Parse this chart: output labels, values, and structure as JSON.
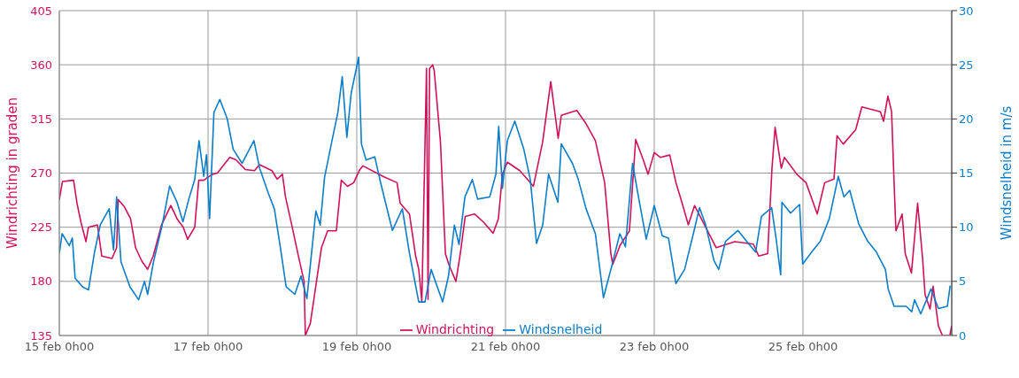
{
  "chart_data": {
    "type": "line",
    "ylabel": "Windrichting in graden",
    "y2label": "Windsnelheid in m/s",
    "xlim": [
      "--02-15T00:00",
      "--02-27T00:00"
    ],
    "xticks": [
      {
        "value": "--02-15T00:00",
        "label": "15 feb 0h00"
      },
      {
        "value": "--02-17T00:00",
        "label": "17 feb 0h00"
      },
      {
        "value": "--02-19T00:00",
        "label": "19 feb 0h00"
      },
      {
        "value": "--02-21T00:00",
        "label": "21 feb 0h00"
      },
      {
        "value": "--02-23T00:00",
        "label": "23 feb 0h00"
      },
      {
        "value": "--02-25T00:00",
        "label": "25 feb 0h00"
      },
      {
        "value": "--02-27T00:00",
        "label": null
      }
    ],
    "ylim": [
      135,
      405
    ],
    "yticks": [
      135,
      180,
      225,
      270,
      315,
      360,
      405
    ],
    "y2lim": [
      0,
      30
    ],
    "y2ticks": [
      0,
      5,
      10,
      15,
      20,
      25,
      30
    ],
    "grid": true,
    "legend": "bottom",
    "marker": "none",
    "series": [
      {
        "name": "Windrichting",
        "color": "#d0105a",
        "axis": "y",
        "x": [
          "--02-15T00:00",
          "--02-15T01:00",
          "--02-15T04:36",
          "--02-15T05:42",
          "--02-15T07:00",
          "--02-15T08:36",
          "--02-15T09:24",
          "--02-15T12:18",
          "--02-15T13:42",
          "--02-15T17:00",
          "--02-15T18:30",
          "--02-15T19:00",
          "--02-15T21:00",
          "--02-15T23:00",
          "--02-16T00:36",
          "--02-16T02:36",
          "--02-16T04:30",
          "--02-16T06:18",
          "--02-16T09:00",
          "--02-16T12:00",
          "--02-16T14:00",
          "--02-16T16:00",
          "--02-16T17:24",
          "--02-16T19:42",
          "--02-16T21:00",
          "--02-16T22:36",
          "--02-17T01:24",
          "--02-17T03:00",
          "--02-17T07:00",
          "--02-17T09:00",
          "--02-17T12:00",
          "--02-17T15:00",
          "--02-17T16:36",
          "--02-17T20:36",
          "--02-17T22:18",
          "--02-18T00:00",
          "--02-18T01:00",
          "--02-18T03:00",
          "--02-18T05:00",
          "--02-18T07:00",
          "--02-18T07:24",
          "--02-18T09:00",
          "--02-18T11:00",
          "--02-18T12:36",
          "--02-18T14:36",
          "--02-18T17:24",
          "--02-18T19:00",
          "--02-18T21:00",
          "--02-18T23:00",
          "--02-19T01:00",
          "--02-19T02:00",
          "--02-19T08:36",
          "--02-19T13:00",
          "--02-19T14:00",
          "--02-19T17:00",
          "--02-19T19:00",
          "--02-19T20:00",
          "--02-19T21:00",
          "--02-19T22:30",
          "--02-19T23:00",
          "--02-19T23:30",
          "--02-20T00:30",
          "--02-20T01:00",
          "--02-20T03:00",
          "--02-20T04:36",
          "--02-20T05:42",
          "--02-20T08:00",
          "--02-20T09:24",
          "--02-20T11:00",
          "--02-20T14:00",
          "--02-20T17:00",
          "--02-20T20:00",
          "--02-20T21:42",
          "--02-20T23:00",
          "--02-21T00:36",
          "--02-21T04:36",
          "--02-21T07:00",
          "--02-21T09:00",
          "--02-21T12:00",
          "--02-21T14:36",
          "--02-21T17:00",
          "--02-21T18:00",
          "--02-21T23:00",
          "--02-22T02:00",
          "--02-22T05:00",
          "--02-22T08:00",
          "--02-22T10:00",
          "--02-22T10:36",
          "--02-22T13:00",
          "--02-22T16:00",
          "--02-22T18:00",
          "--02-22T20:36",
          "--02-22T22:00",
          "--02-23T00:00",
          "--02-23T02:00",
          "--02-23T05:00",
          "--02-23T07:00",
          "--02-23T09:00",
          "--02-23T11:00",
          "--02-23T13:00",
          "--02-23T16:36",
          "--02-23T20:00",
          "--02-24T02:00",
          "--02-24T08:00",
          "--02-24T09:42",
          "--02-24T12:36",
          "--02-24T14:00",
          "--02-24T15:00",
          "--02-24T17:00",
          "--02-24T18:00",
          "--02-24T22:00",
          "--02-25T01:00",
          "--02-25T04:36",
          "--02-25T07:00",
          "--02-25T10:00",
          "--02-25T11:00",
          "--02-25T13:00",
          "--02-25T17:00",
          "--02-25T19:00",
          "--02-25T22:00",
          "--02-26T01:00",
          "--02-26T02:00",
          "--02-26T03:24",
          "--02-26T04:36",
          "--02-26T05:24",
          "--02-26T06:00",
          "--02-26T08:00",
          "--02-26T09:00",
          "--02-26T11:00",
          "--02-26T13:00",
          "--02-26T14:36",
          "--02-26T15:24",
          "--02-26T17:00",
          "--02-26T18:00",
          "--02-26T19:42",
          "--02-26T21:00",
          "--02-26T23:24",
          "--02-27T00:00"
        ],
        "values": [
          248,
          263,
          264,
          245,
          229,
          213,
          225,
          227,
          201,
          199,
          208,
          248,
          242,
          232,
          208,
          197,
          190,
          201,
          227,
          243,
          232,
          225,
          215,
          225,
          264,
          264,
          269,
          270,
          283,
          281,
          273,
          272,
          277,
          272,
          265,
          269,
          250,
          227,
          203,
          180,
          135,
          145,
          180,
          208,
          222,
          222,
          264,
          259,
          262,
          273,
          276,
          267,
          262,
          245,
          236,
          201,
          190,
          163,
          357,
          165,
          357,
          360,
          355,
          296,
          203,
          194,
          180,
          203,
          234,
          236,
          229,
          220,
          232,
          269,
          279,
          272,
          265,
          259,
          296,
          346,
          299,
          318,
          322,
          311,
          297,
          262,
          203,
          194,
          210,
          222,
          298,
          280,
          269,
          287,
          283,
          285,
          262,
          245,
          227,
          243,
          225,
          208,
          213,
          211,
          201,
          203,
          274,
          308,
          274,
          283,
          269,
          262,
          236,
          262,
          265,
          301,
          294,
          306,
          325,
          323,
          321,
          313,
          334,
          321,
          262,
          222,
          236,
          203,
          187,
          245,
          199,
          169,
          157,
          176,
          143,
          135,
          135,
          143
        ]
      },
      {
        "name": "Windsnelheid",
        "color": "#0a7dc8",
        "axis": "y2",
        "x": [
          "--02-15T00:00",
          "--02-15T00:54",
          "--02-15T03:12",
          "--02-15T04:12",
          "--02-15T05:06",
          "--02-15T07:30",
          "--02-15T09:24",
          "--02-15T11:18",
          "--02-15T13:12",
          "--02-15T16:06",
          "--02-15T17:30",
          "--02-15T18:30",
          "--02-15T19:54",
          "--02-15T22:48",
          "--02-16T01:36",
          "--02-16T03:30",
          "--02-16T04:30",
          "--02-16T06:24",
          "--02-16T09:12",
          "--02-16T11:36",
          "--02-16T14:00",
          "--02-16T15:54",
          "--02-16T17:48",
          "--02-16T19:42",
          "--02-16T21:06",
          "--02-16T22:36",
          "--02-16T23:30",
          "--02-17T00:30",
          "--02-17T01:54",
          "--02-17T03:48",
          "--02-17T06:12",
          "--02-17T08:06",
          "--02-17T11:00",
          "--02-17T14:48",
          "--02-17T16:42",
          "--02-17T19:30",
          "--02-17T21:24",
          "--02-17T23:18",
          "--02-18T01:12",
          "--02-18T04:00",
          "--02-18T06:00",
          "--02-18T07:54",
          "--02-18T10:48",
          "--02-18T12:12",
          "--02-18T13:36",
          "--02-18T16:00",
          "--02-18T17:54",
          "--02-18T19:18",
          "--02-18T20:48",
          "--02-18T22:12",
          "--02-19T00:36",
          "--02-19T01:30",
          "--02-19T03:00",
          "--02-19T05:48",
          "--02-19T07:42",
          "--02-19T11:30",
          "--02-19T14:42",
          "--02-19T17:00",
          "--02-19T20:00",
          "--02-19T22:00",
          "--02-20T00:00",
          "--02-20T03:42",
          "--02-20T05:36",
          "--02-20T07:30",
          "--02-20T09:00",
          "--02-20T10:54",
          "--02-20T13:18",
          "--02-20T15:00",
          "--02-20T18:54",
          "--02-20T20:54",
          "--02-20T21:48",
          "--02-20T23:00",
          "--02-21T00:36",
          "--02-21T03:00",
          "--02-21T05:54",
          "--02-21T08:00",
          "--02-21T10:00",
          "--02-21T12:00",
          "--02-21T13:54",
          "--02-21T16:54",
          "--02-21T18:00",
          "--02-21T21:36",
          "--02-21T23:30",
          "--02-22T02:00",
          "--02-22T05:00",
          "--02-22T07:36",
          "--02-22T10:00",
          "--02-22T12:54",
          "--02-22T14:42",
          "--02-22T17:00",
          "--02-22T18:36",
          "--02-22T21:24",
          "--02-23T00:00",
          "--02-23T02:36",
          "--02-23T04:36",
          "--02-23T07:00",
          "--02-23T09:48",
          "--02-23T12:42",
          "--02-23T14:36",
          "--02-23T16:30",
          "--02-23T19:18",
          "--02-23T20:48",
          "--02-23T23:00",
          "--02-24T03:00",
          "--02-24T05:48",
          "--02-24T08:42",
          "--02-24T10:36",
          "--02-24T13:54",
          "--02-24T15:18",
          "--02-24T16:48",
          "--02-24T17:12",
          "--02-24T20:00",
          "--02-24T22:54",
          "--02-24T23:54",
          "--02-25T02:48",
          "--02-25T05:36",
          "--02-25T08:30",
          "--02-25T11:24",
          "--02-25T13:12",
          "--02-25T15:06",
          "--02-25T18:00",
          "--02-25T20:54",
          "--02-25T23:42",
          "--02-26T02:36",
          "--02-26T03:30",
          "--02-26T05:24",
          "--02-26T09:18",
          "--02-26T11:06",
          "--02-26T12:00",
          "--02-26T14:00",
          "--02-26T15:54",
          "--02-26T17:18",
          "--02-26T19:42",
          "--02-26T22:36",
          "--02-26T23:30"
        ],
        "values": [
          7.6,
          9.4,
          8.3,
          9.0,
          5.3,
          4.5,
          4.2,
          7.6,
          10.2,
          11.7,
          7.9,
          12.8,
          6.8,
          4.5,
          3.3,
          5.0,
          3.8,
          6.8,
          10.2,
          13.8,
          12.3,
          10.5,
          12.6,
          14.4,
          18.0,
          14.7,
          16.7,
          10.8,
          20.6,
          21.8,
          20.0,
          17.2,
          15.9,
          18.0,
          15.4,
          13.1,
          11.7,
          8.2,
          4.5,
          3.8,
          5.5,
          3.4,
          11.5,
          10.2,
          14.6,
          18.0,
          20.6,
          23.9,
          18.3,
          22.4,
          25.7,
          17.7,
          16.2,
          16.5,
          14.1,
          9.7,
          11.7,
          7.6,
          3.1,
          3.1,
          6.1,
          3.1,
          5.5,
          10.2,
          8.4,
          12.8,
          14.4,
          12.6,
          12.8,
          14.9,
          19.3,
          13.6,
          18.0,
          19.8,
          17.2,
          14.4,
          8.5,
          10.2,
          14.9,
          12.3,
          17.7,
          15.9,
          14.4,
          11.7,
          9.4,
          3.5,
          6.1,
          9.4,
          8.2,
          15.9,
          13.3,
          8.9,
          12.0,
          9.2,
          9.0,
          4.8,
          6.1,
          9.5,
          11.8,
          10.3,
          6.9,
          6.1,
          8.7,
          9.7,
          8.7,
          7.7,
          11.0,
          11.8,
          9.0,
          5.6,
          12.3,
          11.3,
          12.1,
          6.6,
          7.7,
          8.7,
          10.8,
          14.7,
          12.8,
          13.4,
          10.3,
          8.7,
          7.7,
          6.1,
          4.3,
          2.7,
          2.7,
          2.2,
          3.3,
          2.0,
          3.3,
          4.3,
          2.5,
          2.7,
          4.6
        ]
      }
    ]
  }
}
